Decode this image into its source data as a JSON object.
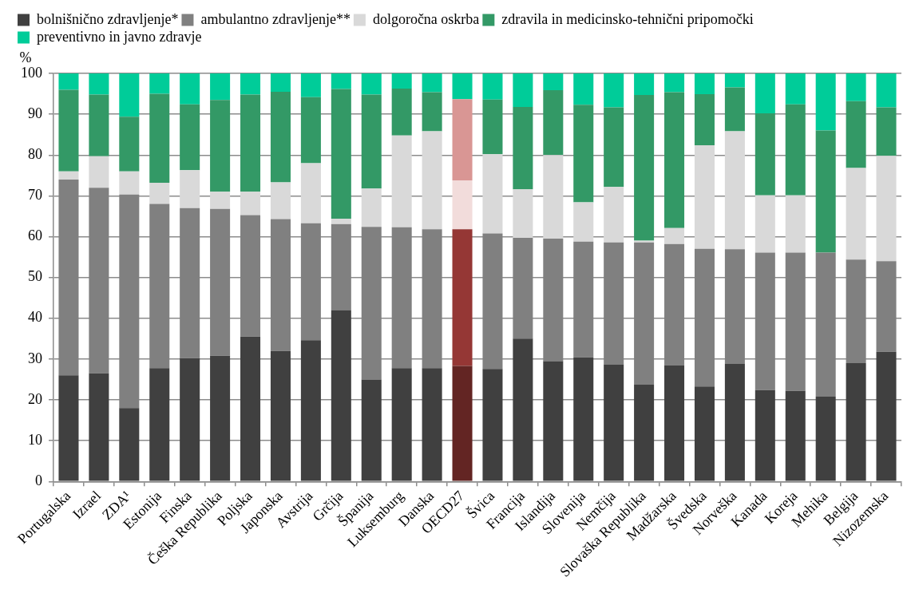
{
  "chart_data": {
    "type": "bar",
    "stacked": true,
    "ylabel": "%",
    "ylim": [
      0,
      100
    ],
    "yticks": [
      0,
      10,
      20,
      30,
      40,
      50,
      60,
      70,
      80,
      90,
      100
    ],
    "grid": "y",
    "legend": "top",
    "categories": [
      "Portugalska",
      "Izrael",
      "ZDA¹",
      "Estonija",
      "Finska",
      "Češka Republika",
      "Poljska",
      "Japonska",
      "Avstrija",
      "Grčija",
      "Španija",
      "Luksemburg",
      "Danska",
      "OECD27",
      "Švica",
      "Francija",
      "Islandija",
      "Slovenija",
      "Nemčija",
      "Slovaška Republika",
      "Madžarska",
      "Švedska",
      "Norveška",
      "Kanada",
      "Koreja",
      "Mehika",
      "Belgija",
      "Nizozemska"
    ],
    "series": [
      {
        "name": "bolnišnično zdravljenje*",
        "color": "#404040",
        "colors": [
          "#404040",
          "#404040",
          "#404040",
          "#404040",
          "#404040",
          "#404040",
          "#404040",
          "#404040",
          "#404040",
          "#404040",
          "#404040",
          "#404040",
          "#404040",
          "#632523",
          "#404040",
          "#404040",
          "#404040",
          "#404040",
          "#404040",
          "#404040",
          "#404040",
          "#404040",
          "#404040",
          "#404040",
          "#404040",
          "#404040",
          "#404040",
          "#404040"
        ],
        "values": [
          26,
          26.5,
          18,
          27.8,
          30.2,
          30.8,
          35.5,
          32,
          34.6,
          42,
          25,
          27.8,
          27.8,
          28.3,
          27.6,
          35,
          29.5,
          30.4,
          28.7,
          23.7,
          28.4,
          23.3,
          28.8,
          22.4,
          22.2,
          20.8,
          29,
          31.8
        ]
      },
      {
        "name": "ambulantno zdravljenje**",
        "color": "#808080",
        "colors": [
          "#808080",
          "#808080",
          "#808080",
          "#808080",
          "#808080",
          "#808080",
          "#808080",
          "#808080",
          "#808080",
          "#808080",
          "#808080",
          "#808080",
          "#808080",
          "#953735",
          "#808080",
          "#808080",
          "#808080",
          "#808080",
          "#808080",
          "#808080",
          "#808080",
          "#808080",
          "#808080",
          "#808080",
          "#808080",
          "#808080",
          "#808080",
          "#808080"
        ],
        "values": [
          48,
          45.5,
          52.3,
          40.2,
          36.8,
          36,
          29.8,
          32.3,
          28.7,
          21.1,
          37.4,
          34.5,
          34,
          33.5,
          33.2,
          24.7,
          30,
          28.4,
          29.9,
          34.9,
          29.8,
          33.7,
          28.1,
          33.7,
          33.9,
          35.3,
          25.4,
          22.2
        ]
      },
      {
        "name": "dolgoročna oskrba",
        "color": "#d9d9d9",
        "colors": [
          "#d9d9d9",
          "#d9d9d9",
          "#d9d9d9",
          "#d9d9d9",
          "#d9d9d9",
          "#d9d9d9",
          "#d9d9d9",
          "#d9d9d9",
          "#d9d9d9",
          "#d9d9d9",
          "#d9d9d9",
          "#d9d9d9",
          "#d9d9d9",
          "#f2dcdb",
          "#d9d9d9",
          "#d9d9d9",
          "#d9d9d9",
          "#d9d9d9",
          "#d9d9d9",
          "#d9d9d9",
          "#d9d9d9",
          "#d9d9d9",
          "#d9d9d9",
          "#d9d9d9",
          "#d9d9d9",
          "#d9d9d9",
          "#d9d9d9",
          "#d9d9d9"
        ],
        "values": [
          2,
          7.7,
          5.7,
          5.2,
          9.3,
          4.2,
          5.7,
          9,
          14.7,
          1.3,
          9.4,
          22.5,
          24,
          12,
          19.4,
          11.9,
          20.5,
          9.6,
          13.6,
          0.4,
          3.9,
          25.4,
          28.9,
          14,
          14,
          0,
          22.4,
          25.8
        ]
      },
      {
        "name": "zdravila in medicinsko-tehnični pripomočki",
        "color": "#339966",
        "colors": [
          "#339966",
          "#339966",
          "#339966",
          "#339966",
          "#339966",
          "#339966",
          "#339966",
          "#339966",
          "#339966",
          "#339966",
          "#339966",
          "#339966",
          "#339966",
          "#d99694",
          "#339966",
          "#339966",
          "#339966",
          "#339966",
          "#339966",
          "#339966",
          "#339966",
          "#339966",
          "#339966",
          "#339966",
          "#339966",
          "#339966",
          "#339966",
          "#339966"
        ],
        "values": [
          20,
          15.1,
          13.4,
          21.8,
          16.1,
          22.5,
          23.8,
          22.2,
          16.2,
          31.8,
          23,
          11.5,
          9.6,
          19.9,
          13.4,
          20.2,
          15.9,
          23.9,
          19.5,
          35.7,
          33.3,
          12.5,
          10.8,
          20.1,
          22.3,
          29.9,
          16.4,
          11.9
        ]
      },
      {
        "name": "preventivno in javno zdravje",
        "color": "#00cc99",
        "values": [
          4,
          5.2,
          10.6,
          5,
          7.6,
          6.5,
          5.2,
          4.5,
          5.8,
          3.8,
          5.2,
          3.7,
          4.6,
          6.3,
          6.4,
          8.2,
          4.1,
          7.7,
          8.3,
          5.5,
          4.6,
          5.1,
          3.4,
          9.8,
          7.6,
          14,
          6.8,
          8.3
        ]
      }
    ]
  }
}
